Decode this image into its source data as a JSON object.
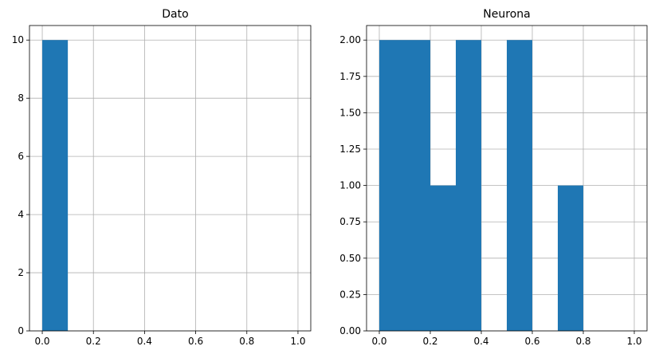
{
  "chart_data": [
    {
      "type": "bar",
      "title": "Dato",
      "xlabel": "",
      "ylabel": "",
      "xlim": [
        -0.05,
        1.05
      ],
      "ylim": [
        0,
        10.5
      ],
      "grid": true,
      "bin_edges": [
        0.0,
        0.1,
        0.2,
        0.3,
        0.4,
        0.5,
        0.6,
        0.7,
        0.8,
        0.9,
        1.0
      ],
      "values": [
        10,
        0,
        0,
        0,
        0,
        0,
        0,
        0,
        0,
        0
      ],
      "xticks": [
        "0.0",
        "0.2",
        "0.4",
        "0.6",
        "0.8",
        "1.0"
      ],
      "yticks": [
        "0",
        "2",
        "4",
        "6",
        "8",
        "10"
      ],
      "color": "#1f77b4"
    },
    {
      "type": "bar",
      "title": "Neurona",
      "xlabel": "",
      "ylabel": "",
      "xlim": [
        -0.05,
        1.05
      ],
      "ylim": [
        0,
        2.1
      ],
      "grid": true,
      "bin_edges": [
        0.0,
        0.1,
        0.2,
        0.3,
        0.4,
        0.5,
        0.6,
        0.7,
        0.8,
        0.9,
        1.0
      ],
      "values": [
        2,
        2,
        1,
        2,
        0,
        2,
        0,
        1,
        0,
        0
      ],
      "xticks": [
        "0.0",
        "0.2",
        "0.4",
        "0.6",
        "0.8",
        "1.0"
      ],
      "yticks": [
        "0.00",
        "0.25",
        "0.50",
        "0.75",
        "1.00",
        "1.25",
        "1.50",
        "1.75",
        "2.00"
      ],
      "color": "#1f77b4"
    }
  ]
}
